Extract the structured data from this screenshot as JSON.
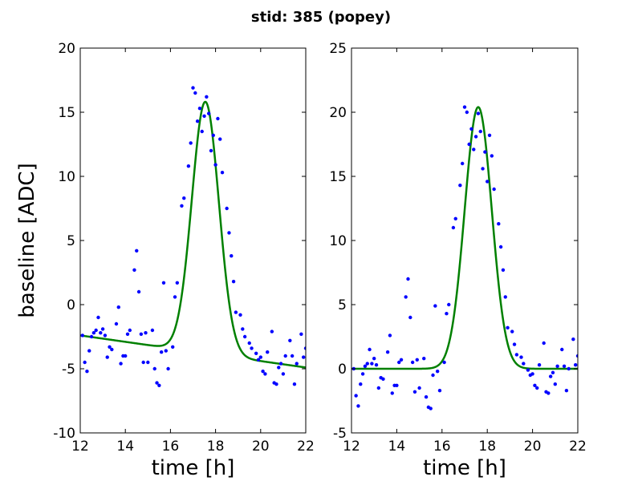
{
  "figure": {
    "suptitle": "stid: 385 (popey)"
  },
  "colors": {
    "points": "#0000ff",
    "fit": "#008000",
    "axes": "#000000"
  },
  "chart_data": [
    {
      "type": "scatter",
      "xlabel": "time [h]",
      "ylabel": "baseline [ADC]",
      "xlim": [
        12,
        22
      ],
      "ylim": [
        -10,
        20
      ],
      "xticks": [
        12,
        14,
        16,
        18,
        20,
        22
      ],
      "yticks": [
        -10,
        -5,
        0,
        5,
        10,
        15,
        20
      ],
      "grid": false,
      "series": [
        {
          "kind": "points",
          "x": [
            12.1,
            12.2,
            12.3,
            12.4,
            12.5,
            12.6,
            12.7,
            12.8,
            12.9,
            13.0,
            13.1,
            13.2,
            13.3,
            13.4,
            13.6,
            13.7,
            13.8,
            13.9,
            14.0,
            14.1,
            14.2,
            14.4,
            14.5,
            14.6,
            14.7,
            14.8,
            14.9,
            15.0,
            15.2,
            15.3,
            15.4,
            15.5,
            15.6,
            15.7,
            15.8,
            15.9,
            16.1,
            16.2,
            16.3,
            16.5,
            16.6,
            16.8,
            16.9,
            17.0,
            17.1,
            17.2,
            17.3,
            17.4,
            17.5,
            17.6,
            17.7,
            17.8,
            17.9,
            18.0,
            18.1,
            18.2,
            18.3,
            18.5,
            18.6,
            18.7,
            18.8,
            18.9,
            19.1,
            19.2,
            19.3,
            19.5,
            19.6,
            19.8,
            19.9,
            20.0,
            20.1,
            20.2,
            20.3,
            20.5,
            20.6,
            20.7,
            20.8,
            20.9,
            21.0,
            21.1,
            21.3,
            21.4,
            21.5,
            21.6,
            21.8,
            21.9,
            22.0
          ],
          "y": [
            -2.4,
            -4.5,
            -5.2,
            -3.6,
            -2.5,
            -2.2,
            -2.0,
            -1.0,
            -2.2,
            -1.9,
            -2.4,
            -4.1,
            -3.3,
            -3.5,
            -1.5,
            -0.2,
            -4.6,
            -4.0,
            -4.0,
            -2.3,
            -2.0,
            2.7,
            4.2,
            1.0,
            -2.3,
            -4.5,
            -2.2,
            -4.5,
            -2.0,
            -5.0,
            -6.1,
            -6.3,
            -3.7,
            1.7,
            -3.6,
            -5.0,
            -3.3,
            0.6,
            1.7,
            7.7,
            8.3,
            10.8,
            12.6,
            16.9,
            16.5,
            14.3,
            15.3,
            13.5,
            14.7,
            16.2,
            14.9,
            12.0,
            13.2,
            10.9,
            14.5,
            12.9,
            10.3,
            7.5,
            5.6,
            3.8,
            1.8,
            -0.6,
            -0.8,
            -1.9,
            -2.5,
            -3.0,
            -3.4,
            -3.8,
            -4.3,
            -4.1,
            -5.2,
            -5.4,
            -3.7,
            -2.1,
            -6.1,
            -6.2,
            -4.9,
            -4.6,
            -5.4,
            -4.0,
            -2.8,
            -4.0,
            -6.2,
            -4.6,
            -2.3,
            -4.1,
            -3.4
          ]
        },
        {
          "kind": "line",
          "model": "gaussian_plus_linear",
          "x_range": [
            12,
            22
          ],
          "baseline_start": -2.4,
          "baseline_end": -4.9,
          "amplitude": 19.6,
          "center": 17.55,
          "sigma": 0.6
        }
      ]
    },
    {
      "type": "scatter",
      "xlabel": "time [h]",
      "ylabel": "",
      "xlim": [
        12,
        22
      ],
      "ylim": [
        -5,
        25
      ],
      "xticks": [
        12,
        14,
        16,
        18,
        20,
        22
      ],
      "yticks": [
        -5,
        0,
        5,
        10,
        15,
        20,
        25
      ],
      "grid": false,
      "series": [
        {
          "kind": "points",
          "x": [
            12.1,
            12.2,
            12.3,
            12.4,
            12.5,
            12.6,
            12.7,
            12.8,
            12.9,
            13.0,
            13.1,
            13.2,
            13.3,
            13.4,
            13.6,
            13.7,
            13.8,
            13.9,
            14.0,
            14.1,
            14.2,
            14.4,
            14.5,
            14.6,
            14.7,
            14.8,
            14.9,
            15.0,
            15.2,
            15.3,
            15.4,
            15.5,
            15.6,
            15.7,
            15.8,
            15.9,
            16.1,
            16.2,
            16.3,
            16.5,
            16.6,
            16.8,
            16.9,
            17.0,
            17.1,
            17.2,
            17.3,
            17.4,
            17.5,
            17.6,
            17.7,
            17.8,
            17.9,
            18.0,
            18.1,
            18.2,
            18.3,
            18.5,
            18.6,
            18.7,
            18.8,
            18.9,
            19.1,
            19.2,
            19.3,
            19.5,
            19.6,
            19.8,
            19.9,
            20.0,
            20.1,
            20.2,
            20.3,
            20.5,
            20.6,
            20.7,
            20.8,
            20.9,
            21.0,
            21.1,
            21.3,
            21.4,
            21.5,
            21.6,
            21.8,
            21.9,
            22.0
          ],
          "y": [
            0.0,
            -2.1,
            -2.9,
            -1.2,
            -0.4,
            0.2,
            0.4,
            1.5,
            0.4,
            0.8,
            0.3,
            -1.5,
            -0.7,
            -0.8,
            1.3,
            2.6,
            -1.9,
            -1.3,
            -1.3,
            0.5,
            0.7,
            5.6,
            7.0,
            4.0,
            0.5,
            -1.8,
            0.7,
            -1.5,
            0.8,
            -2.2,
            -3.0,
            -3.1,
            -0.5,
            4.9,
            -0.2,
            -1.7,
            0.5,
            4.3,
            5.0,
            11.0,
            11.7,
            14.3,
            16.0,
            20.4,
            20.0,
            17.5,
            18.7,
            17.1,
            18.1,
            19.9,
            18.5,
            15.6,
            16.9,
            14.6,
            18.2,
            16.6,
            14.0,
            11.3,
            9.5,
            7.7,
            5.6,
            3.2,
            2.9,
            1.9,
            1.1,
            0.9,
            0.4,
            -0.1,
            -0.5,
            -0.4,
            -1.3,
            -1.5,
            0.3,
            2.0,
            -1.8,
            -1.9,
            -0.6,
            -0.3,
            -1.2,
            0.2,
            1.5,
            0.2,
            -1.7,
            0.0,
            2.3,
            0.3,
            1.0
          ]
        },
        {
          "kind": "line",
          "model": "gaussian_plus_linear",
          "x_range": [
            12,
            22
          ],
          "baseline_start": 0.0,
          "baseline_end": 0.0,
          "amplitude": 20.4,
          "center": 17.6,
          "sigma": 0.6
        }
      ]
    }
  ]
}
